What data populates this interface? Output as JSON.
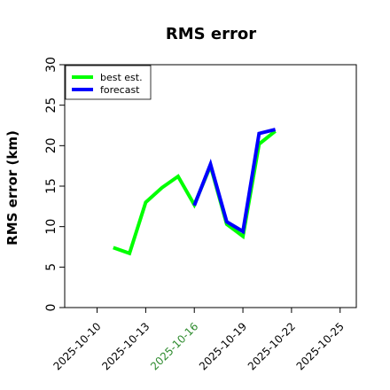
{
  "chart_data": {
    "type": "line",
    "title": "RMS error",
    "ylabel": "RMS error (km)",
    "xlabel": "",
    "ylim": [
      0,
      30
    ],
    "yticks": [
      0,
      5,
      10,
      15,
      20,
      25,
      30
    ],
    "xlim": [
      "2025-10-08",
      "2025-10-26"
    ],
    "xticks": [
      {
        "label": "2025-10-10",
        "date": "2025-10-10",
        "color": "#000000"
      },
      {
        "label": "2025-10-13",
        "date": "2025-10-13",
        "color": "#000000"
      },
      {
        "label": "2025-10-16",
        "date": "2025-10-16",
        "color": "#2e8b2e"
      },
      {
        "label": "2025-10-19",
        "date": "2025-10-19",
        "color": "#000000"
      },
      {
        "label": "2025-10-22",
        "date": "2025-10-22",
        "color": "#000000"
      },
      {
        "label": "2025-10-25",
        "date": "2025-10-25",
        "color": "#000000"
      }
    ],
    "grid": false,
    "legend_position": "top-left",
    "series": [
      {
        "name": "best est.",
        "color": "#00ff00",
        "x": [
          "2025-10-11",
          "2025-10-12",
          "2025-10-13",
          "2025-10-14",
          "2025-10-15",
          "2025-10-16",
          "2025-10-17",
          "2025-10-18",
          "2025-10-19",
          "2025-10-20",
          "2025-10-21"
        ],
        "values": [
          7.4,
          6.7,
          13.0,
          14.8,
          16.2,
          12.7,
          17.5,
          10.3,
          8.8,
          20.2,
          21.8
        ]
      },
      {
        "name": "forecast",
        "color": "#0000ff",
        "x": [
          "2025-10-16",
          "2025-10-17",
          "2025-10-18",
          "2025-10-19",
          "2025-10-20",
          "2025-10-21"
        ],
        "values": [
          12.6,
          17.7,
          10.6,
          9.4,
          21.5,
          22.0
        ]
      }
    ]
  }
}
